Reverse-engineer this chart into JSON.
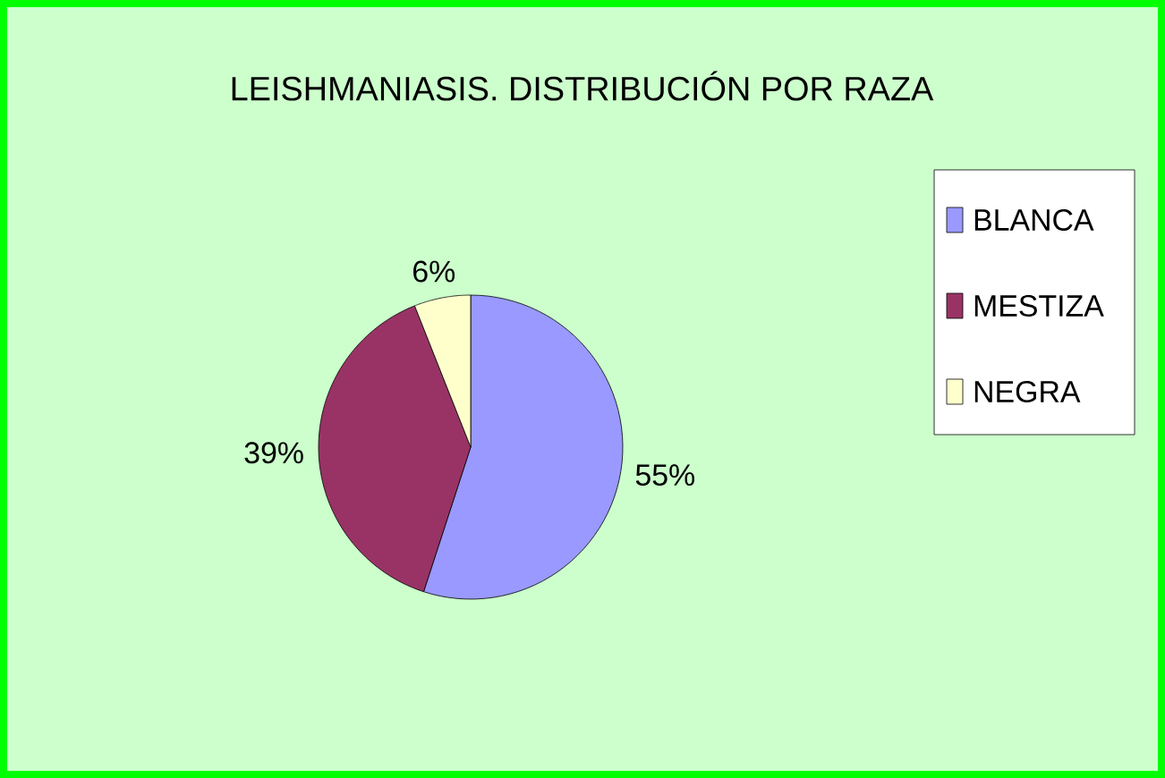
{
  "chart_data": {
    "type": "pie",
    "title": "LEISHMANIASIS. DISTRIBUCIÓN POR RAZA",
    "categories": [
      "BLANCA",
      "MESTIZA",
      "NEGRA"
    ],
    "values": [
      55,
      39,
      6
    ],
    "colors": [
      "#9999ff",
      "#993366",
      "#ffffcc"
    ],
    "value_labels": [
      "55%",
      "39%",
      "6%"
    ],
    "legend": "right"
  }
}
